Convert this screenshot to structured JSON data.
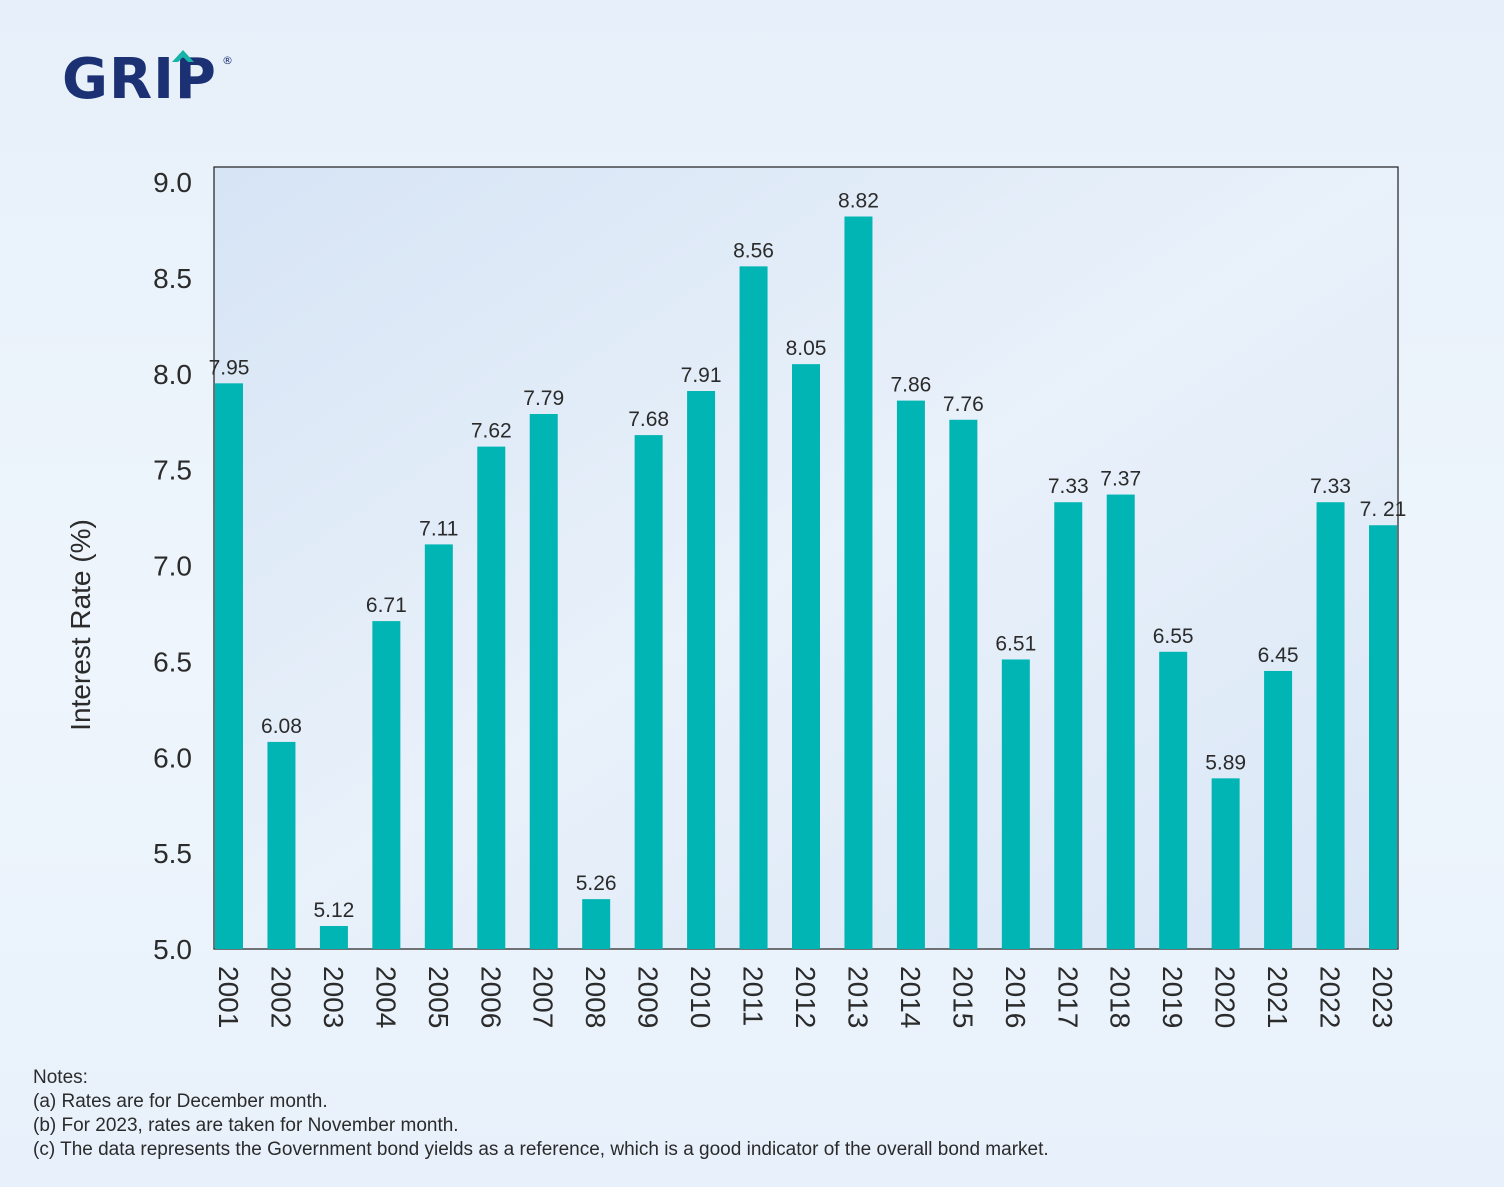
{
  "brand": {
    "name": "GRIP",
    "trademark": "®"
  },
  "chart_data": {
    "type": "bar",
    "ylabel": "Interest Rate (%)",
    "xlabel": "",
    "ylim": [
      5.0,
      9.0
    ],
    "yticks": [
      "5.0",
      "5.5",
      "6.0",
      "6.5",
      "7.0",
      "7.5",
      "8.0",
      "8.5",
      "9.0"
    ],
    "categories": [
      "2001",
      "2002",
      "2003",
      "2004",
      "2005",
      "2006",
      "2007",
      "2008",
      "2009",
      "2010",
      "2011",
      "2012",
      "2013",
      "2014",
      "2015",
      "2016",
      "2017",
      "2018",
      "2019",
      "2020",
      "2021",
      "2022",
      "2023"
    ],
    "values": [
      7.95,
      6.08,
      5.12,
      6.71,
      7.11,
      7.62,
      7.79,
      5.26,
      7.68,
      7.91,
      8.56,
      8.05,
      8.82,
      7.86,
      7.76,
      6.51,
      7.33,
      7.37,
      6.55,
      5.89,
      6.45,
      7.33,
      7.21
    ],
    "data_labels": [
      "7.95",
      "6.08",
      "5.12",
      "6.71",
      "7.11",
      "7.62",
      "7.79",
      "5.26",
      "7.68",
      "7.91",
      "8.56",
      "8.05",
      "8.82",
      "7.86",
      "7.76",
      "6.51",
      "7.33",
      "7.37",
      "6.55",
      "5.89",
      "6.45",
      "7.33",
      "7. 21"
    ],
    "bar_color": "#00b5b3",
    "grid": false,
    "legend": "none"
  },
  "notes": {
    "heading": "Notes:",
    "items": [
      "(a) Rates are for December month.",
      "(b) For 2023, rates are taken for November month.",
      "(c) The data represents the Government bond yields as a reference, which is a good indicator of the overall bond market."
    ]
  }
}
